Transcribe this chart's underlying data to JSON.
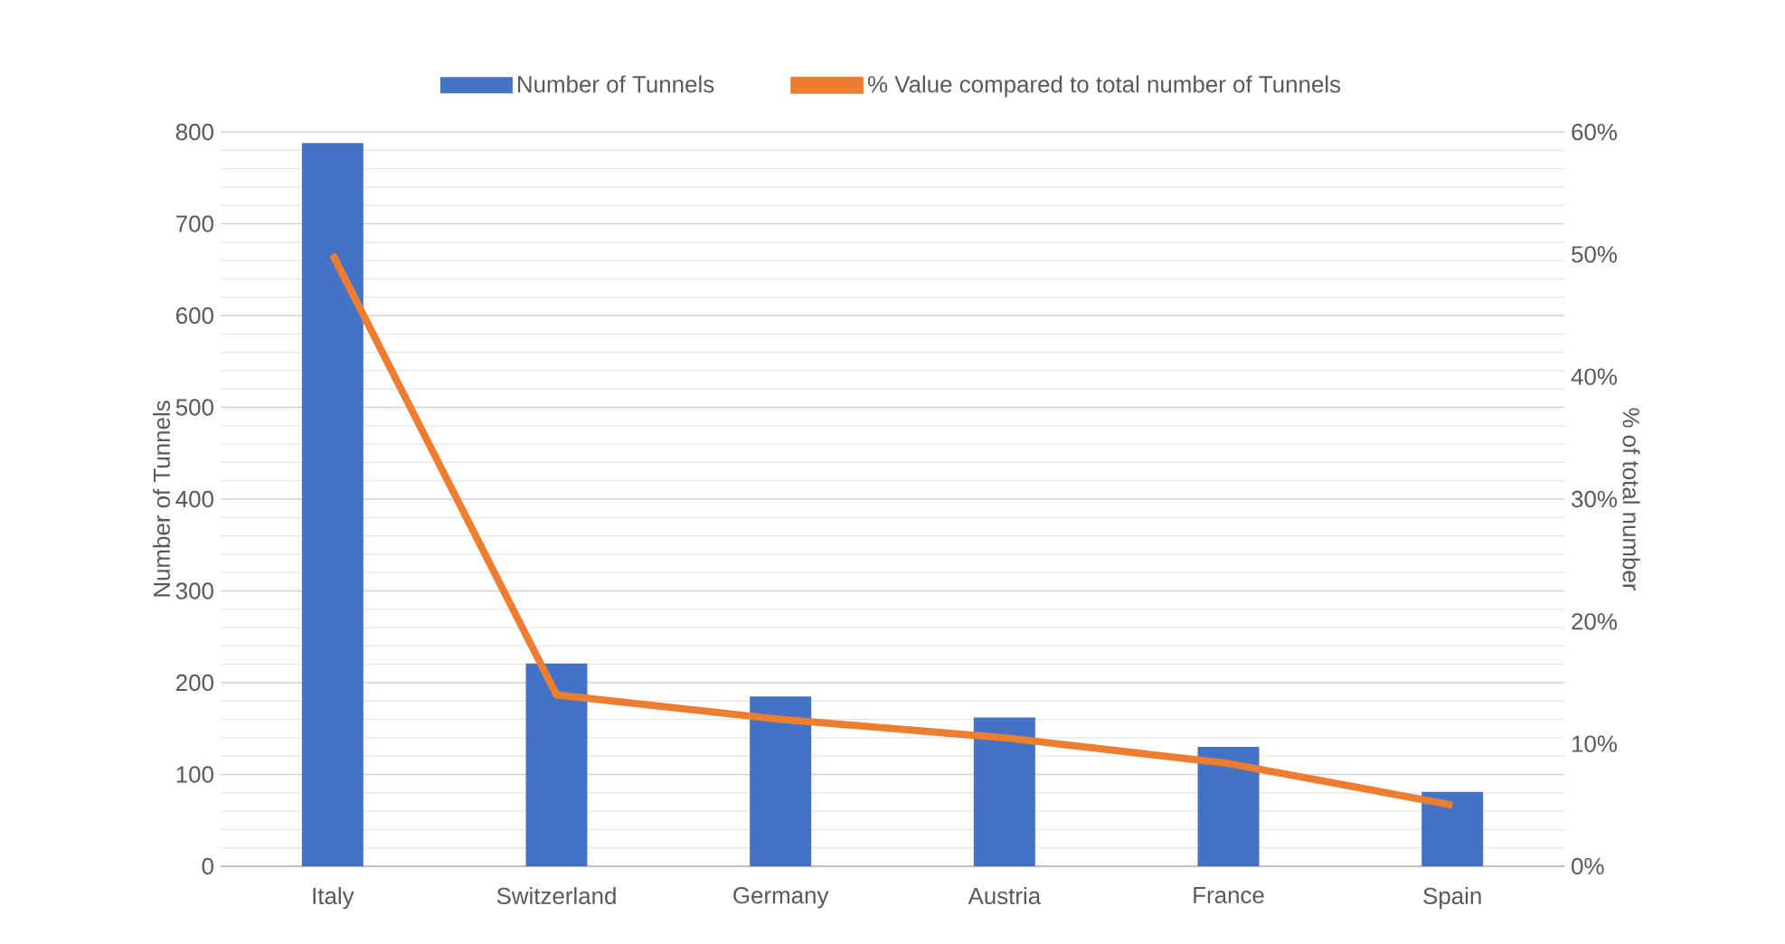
{
  "chart_data": {
    "type": "bar",
    "ylabel": "Number of Tunnels",
    "y2label": "% of total number",
    "categories": [
      "Italy",
      "Switzerland",
      "Germany",
      "Austria",
      "France",
      "Spain"
    ],
    "series": [
      {
        "name": "Number of Tunnels",
        "color": "#4472c4",
        "values": [
          788,
          221,
          185,
          162,
          130,
          81
        ]
      },
      {
        "name": "% Value compared to total number of Tunnels",
        "type": "line",
        "axis": "y2",
        "color": "#ed7d31",
        "marker": "none",
        "values": [
          50,
          14,
          12,
          10.5,
          8.4,
          5
        ]
      }
    ],
    "ylim": [
      0,
      800
    ],
    "yticks": [
      0,
      100,
      200,
      300,
      400,
      500,
      600,
      700,
      800
    ],
    "y2lim": [
      0,
      60
    ],
    "y2ticks": [
      {
        "value": 0,
        "label": "0%"
      },
      {
        "value": 10,
        "label": "10%"
      },
      {
        "value": 20,
        "label": "20%"
      },
      {
        "value": 30,
        "label": "30%"
      },
      {
        "value": 40,
        "label": "40%"
      },
      {
        "value": 50,
        "label": "50%"
      },
      {
        "value": 60,
        "label": "60%"
      }
    ],
    "grid": "y",
    "legend": "top"
  }
}
